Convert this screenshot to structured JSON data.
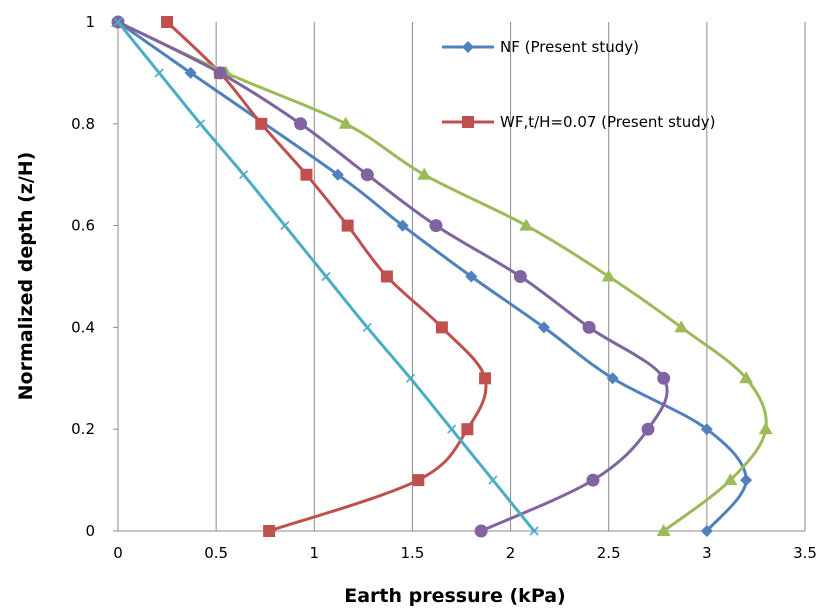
{
  "chart_data": {
    "type": "line",
    "xlabel": "Earth pressure (kPa)",
    "ylabel": "Normalized depth (z/H)",
    "xlim": [
      0,
      3.5
    ],
    "ylim": [
      0,
      1
    ],
    "x_ticks": [
      "0",
      "0.5",
      "1",
      "1.5",
      "2",
      "2.5",
      "3",
      "3.5"
    ],
    "y_ticks": [
      "0",
      "0.2",
      "0.4",
      "0.6",
      "0.8",
      "1"
    ],
    "grid": "vertical gridlines",
    "legend_position": "top-right",
    "series": [
      {
        "name": "NF (Present study)",
        "color": "#4F81BD",
        "marker": "diamond",
        "points": [
          [
            0,
            1
          ],
          [
            0.37,
            0.9
          ],
          [
            1.12,
            0.7
          ],
          [
            1.45,
            0.6
          ],
          [
            1.8,
            0.5
          ],
          [
            2.17,
            0.4
          ],
          [
            2.52,
            0.3
          ],
          [
            3.0,
            0.2
          ],
          [
            3.2,
            0.1
          ],
          [
            3.0,
            0
          ]
        ]
      },
      {
        "name": "WF,t/H=0.07 (Present study)",
        "color": "#C0504D",
        "marker": "square",
        "points": [
          [
            0.25,
            1
          ],
          [
            0.52,
            0.9
          ],
          [
            0.73,
            0.8
          ],
          [
            0.96,
            0.7
          ],
          [
            1.17,
            0.6
          ],
          [
            1.37,
            0.5
          ],
          [
            1.65,
            0.4
          ],
          [
            1.87,
            0.3
          ],
          [
            1.78,
            0.2
          ],
          [
            1.53,
            0.1
          ],
          [
            0.77,
            0
          ]
        ]
      },
      {
        "color": "#9BBB59",
        "marker": "triangle",
        "points": [
          [
            0,
            1
          ],
          [
            0.55,
            0.9
          ],
          [
            1.16,
            0.8
          ],
          [
            1.56,
            0.7
          ],
          [
            2.08,
            0.6
          ],
          [
            2.5,
            0.5
          ],
          [
            2.87,
            0.4
          ],
          [
            3.2,
            0.3
          ],
          [
            3.3,
            0.2
          ],
          [
            3.12,
            0.1
          ],
          [
            2.78,
            0
          ]
        ]
      },
      {
        "color": "#8064A2",
        "marker": "circle",
        "points": [
          [
            0,
            1
          ],
          [
            0.52,
            0.9
          ],
          [
            0.93,
            0.8
          ],
          [
            1.27,
            0.7
          ],
          [
            1.62,
            0.6
          ],
          [
            2.05,
            0.5
          ],
          [
            2.4,
            0.4
          ],
          [
            2.78,
            0.3
          ],
          [
            2.7,
            0.2
          ],
          [
            2.42,
            0.1
          ],
          [
            1.85,
            0
          ]
        ]
      },
      {
        "color": "#4BACC6",
        "marker": "x",
        "points": [
          [
            0,
            1
          ],
          [
            0.21,
            0.9
          ],
          [
            0.42,
            0.8
          ],
          [
            0.64,
            0.7
          ],
          [
            0.85,
            0.6
          ],
          [
            1.06,
            0.5
          ],
          [
            1.27,
            0.4
          ],
          [
            1.49,
            0.3
          ],
          [
            1.7,
            0.2
          ],
          [
            1.91,
            0.1
          ],
          [
            2.12,
            0
          ]
        ]
      }
    ]
  }
}
